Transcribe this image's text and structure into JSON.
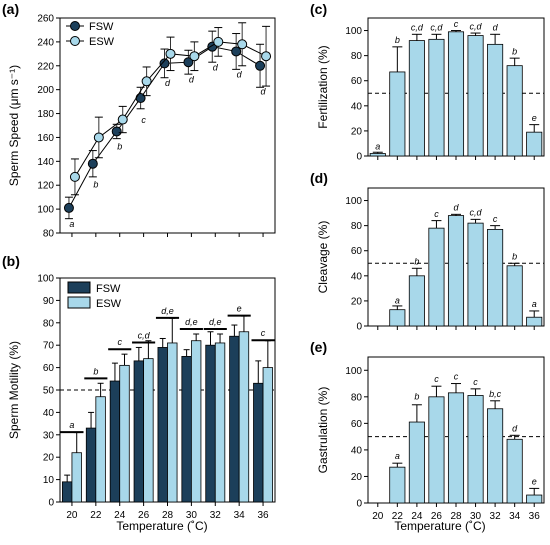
{
  "figure": {
    "shared_xlabel": "Temperature (˚C)",
    "colors": {
      "fsw": "#1c3f5a",
      "esw": "#a8d8ea",
      "bar": "#a8d8ea",
      "edge": "#000000"
    }
  },
  "chart_data": [
    {
      "id": "a",
      "panel_label": "(a)",
      "type": "line",
      "ylabel": "Sperm Speed (μm s⁻¹)",
      "xlabel": "",
      "x": [
        20,
        22,
        24,
        26,
        28,
        30,
        32,
        34,
        36
      ],
      "xlim": [
        19,
        37
      ],
      "ylim": [
        80,
        260
      ],
      "yticks": [
        80,
        100,
        120,
        140,
        160,
        180,
        200,
        220,
        240,
        260
      ],
      "legend": "top-left",
      "series": [
        {
          "name": "FSW",
          "key": "fsw",
          "values": [
            101,
            138,
            165,
            193,
            222,
            223,
            236,
            232,
            220
          ],
          "errors": [
            9,
            11,
            6,
            9,
            12,
            10,
            13,
            15,
            18
          ]
        },
        {
          "name": "ESW",
          "key": "esw",
          "values": [
            127,
            160,
            175,
            207,
            230,
            228,
            240,
            238,
            228
          ],
          "errors": [
            15,
            17,
            11,
            12,
            14,
            12,
            12,
            18,
            25
          ]
        }
      ],
      "annotations": [
        {
          "x": 20,
          "text": "a",
          "y": 85
        },
        {
          "x": 22,
          "text": "b",
          "y": 118
        },
        {
          "x": 24,
          "text": "b",
          "y": 150
        },
        {
          "x": 26,
          "text": "c",
          "y": 172
        },
        {
          "x": 28,
          "text": "d",
          "y": 203
        },
        {
          "x": 30,
          "text": "d",
          "y": 206
        },
        {
          "x": 32,
          "text": "d",
          "y": 216
        },
        {
          "x": 34,
          "text": "d",
          "y": 210
        },
        {
          "x": 36,
          "text": "d",
          "y": 196
        }
      ]
    },
    {
      "id": "b",
      "panel_label": "(b)",
      "type": "bar",
      "ylabel": "Sperm Motility (%)",
      "xlabel": "",
      "categories": [
        "20",
        "22",
        "24",
        "26",
        "28",
        "30",
        "32",
        "34",
        "36"
      ],
      "ylim": [
        0,
        100
      ],
      "yticks": [
        0,
        10,
        20,
        30,
        40,
        50,
        60,
        70,
        80,
        90,
        100
      ],
      "reference_line": 50,
      "legend": "top-left",
      "series": [
        {
          "name": "FSW",
          "key": "fsw",
          "values": [
            9,
            33,
            54,
            63,
            69,
            65,
            70,
            74,
            53
          ],
          "errors": [
            3,
            7,
            8,
            6,
            4,
            3,
            6,
            5,
            10
          ]
        },
        {
          "name": "ESW",
          "key": "esw",
          "values": [
            22,
            47,
            61,
            64,
            71,
            72,
            71,
            76,
            60
          ],
          "errors": [
            9,
            6,
            5,
            8,
            11,
            3,
            4,
            7,
            12
          ]
        }
      ],
      "annotations": [
        {
          "x": "20",
          "text": "a",
          "y": 33
        },
        {
          "x": "22",
          "text": "b",
          "y": 57
        },
        {
          "x": "24",
          "text": "c",
          "y": 70
        },
        {
          "x": "26",
          "text": "c,d",
          "y": 73
        },
        {
          "x": "28",
          "text": "d,e",
          "y": 84
        },
        {
          "x": "30",
          "text": "d,e",
          "y": 79
        },
        {
          "x": "32",
          "text": "d,e",
          "y": 79
        },
        {
          "x": "34",
          "text": "e",
          "y": 85
        },
        {
          "x": "36",
          "text": "c",
          "y": 74
        }
      ]
    },
    {
      "id": "c",
      "panel_label": "(c)",
      "type": "bar",
      "ylabel": "Fertilization (%)",
      "xlabel": "",
      "categories": [
        "20",
        "22",
        "24",
        "26",
        "28",
        "30",
        "32",
        "34",
        "36"
      ],
      "ylim": [
        0,
        110
      ],
      "yticks": [
        0,
        20,
        40,
        60,
        80,
        100
      ],
      "reference_line": 50,
      "series": [
        {
          "name": "",
          "key": "bar",
          "values": [
            2,
            67,
            92,
            93,
            99,
            96,
            89,
            72,
            19
          ],
          "errors": [
            1,
            20,
            5,
            4,
            1,
            2,
            8,
            6,
            6
          ]
        }
      ],
      "annotations": [
        {
          "x": "20",
          "text": "a",
          "y": 5
        },
        {
          "x": "22",
          "text": "b",
          "y": 90
        },
        {
          "x": "24",
          "text": "c,d",
          "y": 100
        },
        {
          "x": "26",
          "text": "c,d",
          "y": 100
        },
        {
          "x": "28",
          "text": "c",
          "y": 103
        },
        {
          "x": "30",
          "text": "c,d",
          "y": 101
        },
        {
          "x": "32",
          "text": "d",
          "y": 100
        },
        {
          "x": "34",
          "text": "b",
          "y": 81
        },
        {
          "x": "36",
          "text": "e",
          "y": 28
        }
      ]
    },
    {
      "id": "d",
      "panel_label": "(d)",
      "type": "bar",
      "ylabel": "Cleavage (%)",
      "xlabel": "",
      "categories": [
        "20",
        "22",
        "24",
        "26",
        "28",
        "30",
        "32",
        "34",
        "36"
      ],
      "ylim": [
        0,
        110
      ],
      "yticks": [
        0,
        20,
        40,
        60,
        80,
        100
      ],
      "reference_line": 50,
      "series": [
        {
          "name": "",
          "key": "bar",
          "values": [
            0,
            13,
            40,
            78,
            88,
            82,
            77,
            48,
            7
          ],
          "errors": [
            0,
            3,
            6,
            6,
            1,
            3,
            3,
            2,
            5
          ]
        }
      ],
      "annotations": [
        {
          "x": "22",
          "text": "a",
          "y": 18
        },
        {
          "x": "24",
          "text": "b",
          "y": 49
        },
        {
          "x": "26",
          "text": "c",
          "y": 87
        },
        {
          "x": "28",
          "text": "d",
          "y": 92
        },
        {
          "x": "30",
          "text": "c,d",
          "y": 88
        },
        {
          "x": "32",
          "text": "c",
          "y": 83
        },
        {
          "x": "34",
          "text": "b",
          "y": 53
        },
        {
          "x": "36",
          "text": "a",
          "y": 15
        }
      ]
    },
    {
      "id": "e",
      "panel_label": "(e)",
      "type": "bar",
      "ylabel": "Gastrulation (%)",
      "xlabel": "Temperature (˚C)",
      "categories": [
        "20",
        "22",
        "24",
        "26",
        "28",
        "30",
        "32",
        "34",
        "36"
      ],
      "ylim": [
        0,
        110
      ],
      "yticks": [
        0,
        20,
        40,
        60,
        80,
        100
      ],
      "reference_line": 50,
      "series": [
        {
          "name": "",
          "key": "bar",
          "values": [
            0,
            27,
            61,
            80,
            83,
            81,
            71,
            48,
            6
          ],
          "errors": [
            0,
            3,
            13,
            8,
            7,
            5,
            6,
            3,
            5
          ]
        }
      ],
      "annotations": [
        {
          "x": "22",
          "text": "a",
          "y": 33
        },
        {
          "x": "24",
          "text": "b",
          "y": 78
        },
        {
          "x": "26",
          "text": "c",
          "y": 91
        },
        {
          "x": "28",
          "text": "c",
          "y": 93
        },
        {
          "x": "30",
          "text": "c",
          "y": 89
        },
        {
          "x": "32",
          "text": "b,c",
          "y": 80
        },
        {
          "x": "34",
          "text": "d",
          "y": 54
        },
        {
          "x": "36",
          "text": "e",
          "y": 14
        }
      ]
    }
  ]
}
